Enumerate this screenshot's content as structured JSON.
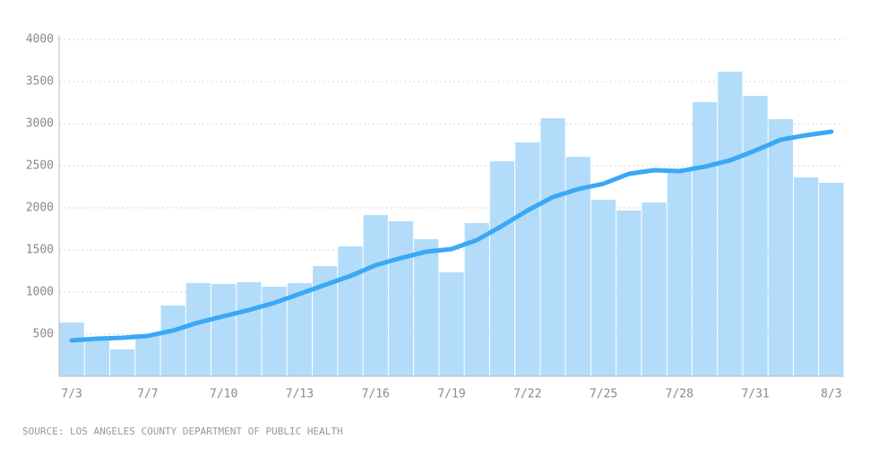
{
  "chart_data": {
    "type": "bar_line",
    "source": "SOURCE: LOS ANGELES COUNTY DEPARTMENT OF PUBLIC HEALTH",
    "categories": [
      "7/3",
      null,
      null,
      "7/7",
      null,
      null,
      "7/10",
      null,
      null,
      "7/13",
      null,
      null,
      "7/16",
      null,
      null,
      "7/19",
      null,
      null,
      "7/22",
      null,
      null,
      "7/25",
      null,
      null,
      "7/28",
      null,
      null,
      "7/31",
      null,
      null,
      "8/3"
    ],
    "series": [
      {
        "type": "bar",
        "color": "#b3dcfa",
        "values": [
          638,
          447,
          319,
          479,
          840,
          1106,
          1096,
          1117,
          1064,
          1106,
          1309,
          1543,
          1915,
          1840,
          1628,
          1234,
          1819,
          2553,
          2777,
          3064,
          2606,
          2096,
          1968,
          2064,
          2447,
          3255,
          3617,
          3330,
          3053,
          2362,
          2298
        ]
      },
      {
        "type": "line",
        "color": "#3aa8f5",
        "values": [
          426,
          447,
          457,
          479,
          543,
          638,
          713,
          787,
          872,
          979,
          1085,
          1191,
          1319,
          1404,
          1479,
          1511,
          1617,
          1787,
          1968,
          2128,
          2223,
          2287,
          2404,
          2447,
          2436,
          2489,
          2564,
          2681,
          2809,
          2862,
          2904
        ]
      }
    ],
    "ylim": [
      0,
      4000
    ],
    "yticks": [
      500,
      1000,
      1500,
      2000,
      2500,
      3000,
      3500,
      4000
    ],
    "grid": true
  }
}
